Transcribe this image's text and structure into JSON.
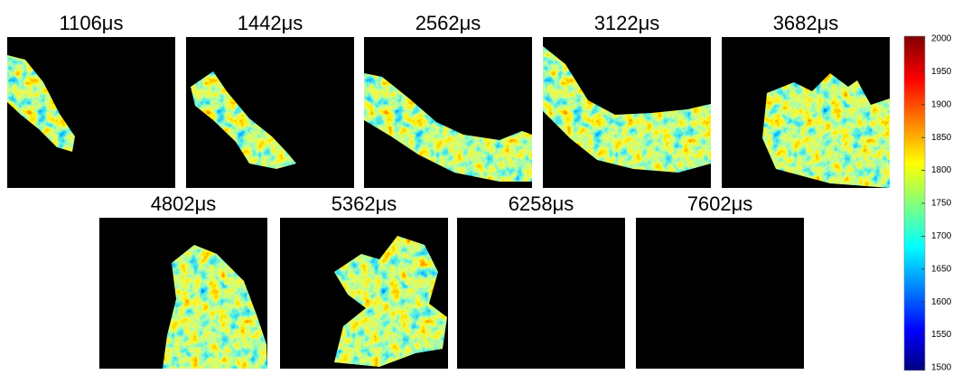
{
  "panels": [
    {
      "label": "1106μs"
    },
    {
      "label": "1442μs"
    },
    {
      "label": "2562μs"
    },
    {
      "label": "3122μs"
    },
    {
      "label": "3682μs"
    },
    {
      "label": "4802μs"
    },
    {
      "label": "5362μs"
    },
    {
      "label": "6258μs"
    },
    {
      "label": "7602μs"
    }
  ],
  "colorbar": {
    "lim": [
      1500,
      2000
    ],
    "ticks": [
      1500,
      1550,
      1600,
      1650,
      1700,
      1750,
      1800,
      1850,
      1900,
      1950,
      2000
    ]
  }
}
